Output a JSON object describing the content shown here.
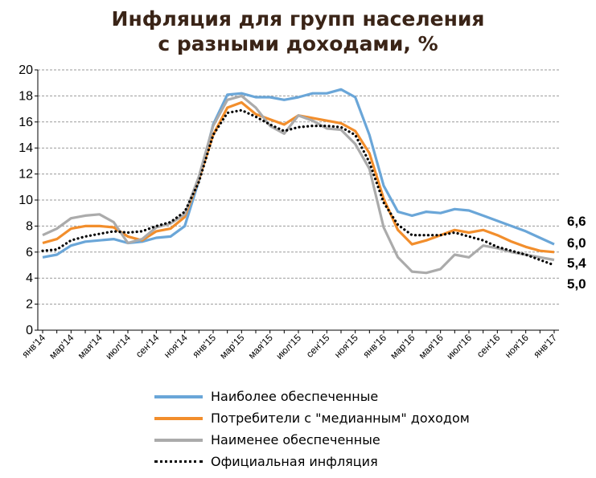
{
  "chart_data": {
    "type": "line",
    "title_lines": [
      "Инфляция для групп населения",
      "с разными доходами, %"
    ],
    "xlabel": "",
    "ylabel": "",
    "ylim": [
      0,
      20
    ],
    "yticks": [
      0,
      2,
      4,
      6,
      8,
      10,
      12,
      14,
      16,
      18,
      20
    ],
    "ytick_labels": [
      "0",
      "2",
      "4",
      "6",
      "8",
      "10",
      "12",
      "14",
      "16",
      "18",
      "20"
    ],
    "grid": true,
    "legend_position": "bottom",
    "x_tick_labels": [
      "янв'14",
      "мар'14",
      "мая'14",
      "июл'14",
      "сен'14",
      "ноя'14",
      "янв'15",
      "мар'15",
      "мая'15",
      "июл'15",
      "сен'15",
      "ноя'15",
      "янв'16",
      "мар'16",
      "мая'16",
      "июл'16",
      "сен'16",
      "ноя'16",
      "янв'17"
    ],
    "x_tick_index": [
      0,
      2,
      4,
      6,
      8,
      10,
      12,
      14,
      16,
      18,
      20,
      22,
      24,
      26,
      28,
      30,
      32,
      34,
      36
    ],
    "n_points": 37,
    "series": [
      {
        "name": "Наиболее обеспеченные",
        "color": "#6aa6d8",
        "style": "solid",
        "end_label": "6,6",
        "values": [
          5.6,
          5.8,
          6.5,
          6.8,
          6.9,
          7.0,
          6.7,
          6.8,
          7.1,
          7.2,
          8.0,
          11.5,
          15.8,
          18.1,
          18.2,
          17.9,
          17.9,
          17.7,
          17.9,
          18.2,
          18.2,
          18.5,
          17.9,
          15.0,
          11.1,
          9.1,
          8.8,
          9.1,
          9.0,
          9.3,
          9.2,
          8.8,
          8.4,
          8.0,
          7.6,
          7.1,
          6.6
        ]
      },
      {
        "name": "Потребители с \"медианным\" доходом",
        "color": "#f28e2c",
        "style": "solid",
        "end_label": "6,0",
        "values": [
          6.7,
          7.0,
          7.8,
          8.0,
          8.0,
          7.9,
          7.2,
          6.9,
          7.6,
          7.8,
          8.7,
          11.6,
          15.0,
          17.1,
          17.5,
          16.6,
          16.2,
          15.8,
          16.5,
          16.3,
          16.1,
          15.9,
          15.3,
          13.6,
          10.1,
          7.7,
          6.6,
          6.9,
          7.3,
          7.7,
          7.5,
          7.7,
          7.3,
          6.8,
          6.4,
          6.1,
          6.0
        ]
      },
      {
        "name": "Наименее обеспеченные",
        "color": "#ababab",
        "style": "solid",
        "end_label": "5,4",
        "values": [
          7.3,
          7.8,
          8.6,
          8.8,
          8.9,
          8.3,
          6.7,
          7.0,
          7.9,
          8.2,
          8.9,
          11.8,
          15.7,
          17.7,
          18.0,
          17.1,
          15.7,
          15.1,
          16.5,
          16.1,
          15.5,
          15.4,
          14.3,
          12.4,
          7.9,
          5.6,
          4.5,
          4.4,
          4.7,
          5.8,
          5.6,
          6.5,
          6.3,
          6.0,
          5.8,
          5.6,
          5.4
        ]
      },
      {
        "name": "Официальная инфляция",
        "color": "#000000",
        "style": "dotted",
        "end_label": "5,0",
        "values": [
          6.1,
          6.2,
          6.9,
          7.2,
          7.4,
          7.6,
          7.5,
          7.6,
          8.0,
          8.3,
          9.1,
          11.4,
          15.0,
          16.7,
          16.9,
          16.4,
          15.8,
          15.3,
          15.6,
          15.7,
          15.7,
          15.6,
          15.0,
          12.9,
          9.8,
          8.1,
          7.3,
          7.3,
          7.3,
          7.5,
          7.2,
          6.9,
          6.4,
          6.1,
          5.8,
          5.4,
          5.0
        ]
      }
    ]
  }
}
